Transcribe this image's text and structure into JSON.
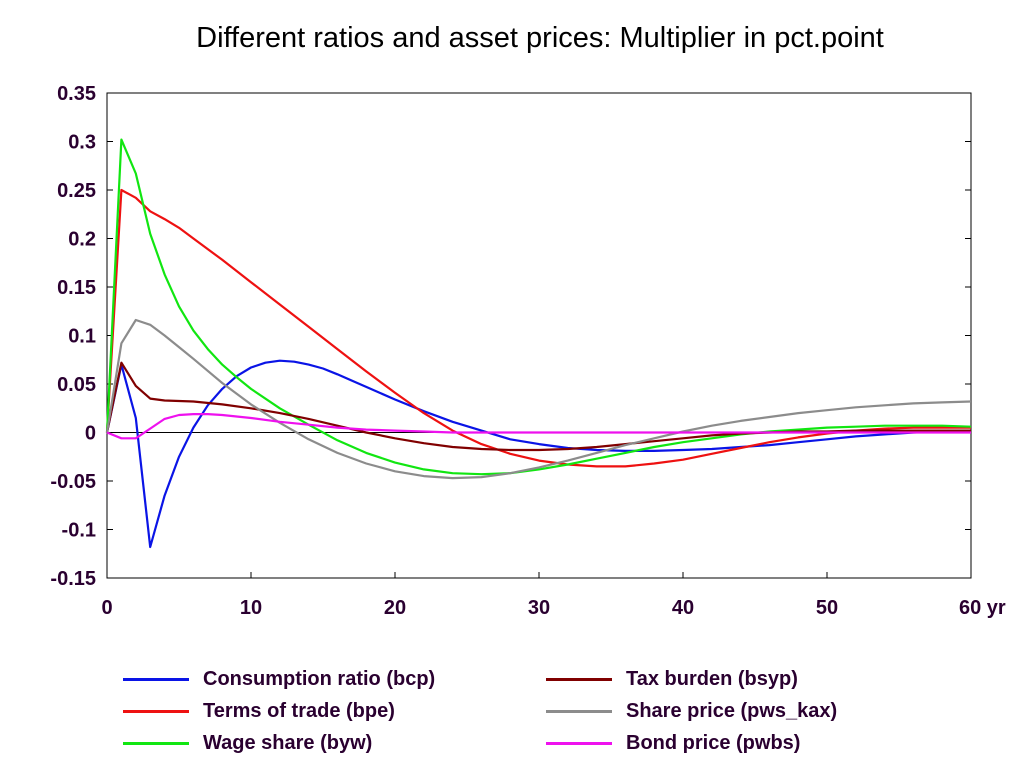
{
  "chart_data": {
    "type": "line",
    "title": "Different ratios and asset prices: Multiplier in pct.point",
    "xlabel": "",
    "ylabel": "",
    "x_unit_label": "yr",
    "xlim": [
      0,
      60
    ],
    "ylim": [
      -0.15,
      0.35
    ],
    "x_ticks": [
      "0",
      "10",
      "20",
      "30",
      "40",
      "50",
      "60 yr"
    ],
    "y_ticks": [
      "0.35",
      "0.3",
      "0.25",
      "0.2",
      "0.15",
      "0.1",
      "0.05",
      "0",
      "-0.05",
      "-0.1",
      "-0.15"
    ],
    "grid": false,
    "zero_line": true,
    "legend_position": "bottom",
    "series": [
      {
        "name": "Consumption ratio (bcp)",
        "color": "#0a14e6",
        "points": [
          [
            0,
            0
          ],
          [
            1,
            0.07
          ],
          [
            2,
            0.015
          ],
          [
            3,
            -0.118
          ],
          [
            4,
            -0.065
          ],
          [
            5,
            -0.025
          ],
          [
            6,
            0.005
          ],
          [
            7,
            0.028
          ],
          [
            8,
            0.045
          ],
          [
            9,
            0.058
          ],
          [
            10,
            0.067
          ],
          [
            11,
            0.072
          ],
          [
            12,
            0.074
          ],
          [
            13,
            0.073
          ],
          [
            14,
            0.07
          ],
          [
            15,
            0.066
          ],
          [
            16,
            0.06
          ],
          [
            18,
            0.047
          ],
          [
            20,
            0.034
          ],
          [
            22,
            0.022
          ],
          [
            24,
            0.011
          ],
          [
            26,
            0.002
          ],
          [
            28,
            -0.007
          ],
          [
            30,
            -0.012
          ],
          [
            32,
            -0.016
          ],
          [
            34,
            -0.018
          ],
          [
            36,
            -0.019
          ],
          [
            38,
            -0.019
          ],
          [
            40,
            -0.018
          ],
          [
            42,
            -0.017
          ],
          [
            44,
            -0.015
          ],
          [
            46,
            -0.013
          ],
          [
            48,
            -0.01
          ],
          [
            50,
            -0.007
          ],
          [
            52,
            -0.004
          ],
          [
            54,
            -0.002
          ],
          [
            56,
            0.0
          ],
          [
            58,
            0.001
          ],
          [
            60,
            0.002
          ]
        ]
      },
      {
        "name": "Terms of trade (bpe)",
        "color": "#ee1111",
        "points": [
          [
            0,
            0
          ],
          [
            1,
            0.25
          ],
          [
            2,
            0.242
          ],
          [
            3,
            0.228
          ],
          [
            4,
            0.22
          ],
          [
            5,
            0.211
          ],
          [
            6,
            0.2
          ],
          [
            8,
            0.178
          ],
          [
            10,
            0.155
          ],
          [
            12,
            0.132
          ],
          [
            14,
            0.109
          ],
          [
            16,
            0.086
          ],
          [
            18,
            0.063
          ],
          [
            20,
            0.041
          ],
          [
            22,
            0.02
          ],
          [
            24,
            0.002
          ],
          [
            26,
            -0.012
          ],
          [
            28,
            -0.022
          ],
          [
            30,
            -0.029
          ],
          [
            32,
            -0.033
          ],
          [
            34,
            -0.035
          ],
          [
            36,
            -0.035
          ],
          [
            38,
            -0.032
          ],
          [
            40,
            -0.028
          ],
          [
            42,
            -0.022
          ],
          [
            44,
            -0.016
          ],
          [
            46,
            -0.01
          ],
          [
            48,
            -0.005
          ],
          [
            50,
            -0.001
          ],
          [
            52,
            0.002
          ],
          [
            54,
            0.004
          ],
          [
            56,
            0.005
          ],
          [
            58,
            0.005
          ],
          [
            60,
            0.005
          ]
        ]
      },
      {
        "name": "Wage share (byw)",
        "color": "#11e611",
        "points": [
          [
            0,
            0
          ],
          [
            1,
            0.302
          ],
          [
            2,
            0.267
          ],
          [
            3,
            0.205
          ],
          [
            4,
            0.163
          ],
          [
            5,
            0.13
          ],
          [
            6,
            0.105
          ],
          [
            7,
            0.086
          ],
          [
            8,
            0.07
          ],
          [
            9,
            0.057
          ],
          [
            10,
            0.045
          ],
          [
            12,
            0.025
          ],
          [
            14,
            0.008
          ],
          [
            16,
            -0.008
          ],
          [
            18,
            -0.021
          ],
          [
            20,
            -0.031
          ],
          [
            22,
            -0.038
          ],
          [
            24,
            -0.042
          ],
          [
            26,
            -0.043
          ],
          [
            28,
            -0.042
          ],
          [
            30,
            -0.038
          ],
          [
            32,
            -0.033
          ],
          [
            34,
            -0.027
          ],
          [
            36,
            -0.021
          ],
          [
            38,
            -0.015
          ],
          [
            40,
            -0.01
          ],
          [
            42,
            -0.006
          ],
          [
            44,
            -0.002
          ],
          [
            46,
            0.001
          ],
          [
            48,
            0.003
          ],
          [
            50,
            0.005
          ],
          [
            52,
            0.006
          ],
          [
            54,
            0.007
          ],
          [
            56,
            0.007
          ],
          [
            58,
            0.007
          ],
          [
            60,
            0.006
          ]
        ]
      },
      {
        "name": "Tax burden (bsyp)",
        "color": "#800000",
        "points": [
          [
            0,
            0
          ],
          [
            1,
            0.072
          ],
          [
            2,
            0.048
          ],
          [
            3,
            0.035
          ],
          [
            4,
            0.033
          ],
          [
            6,
            0.032
          ],
          [
            8,
            0.029
          ],
          [
            10,
            0.025
          ],
          [
            12,
            0.02
          ],
          [
            14,
            0.014
          ],
          [
            16,
            0.007
          ],
          [
            18,
            0.0
          ],
          [
            20,
            -0.006
          ],
          [
            22,
            -0.011
          ],
          [
            24,
            -0.015
          ],
          [
            26,
            -0.017
          ],
          [
            28,
            -0.018
          ],
          [
            30,
            -0.018
          ],
          [
            32,
            -0.017
          ],
          [
            34,
            -0.015
          ],
          [
            36,
            -0.012
          ],
          [
            38,
            -0.009
          ],
          [
            40,
            -0.006
          ],
          [
            42,
            -0.003
          ],
          [
            44,
            -0.001
          ],
          [
            46,
            0.0
          ],
          [
            48,
            0.001
          ],
          [
            50,
            0.001
          ],
          [
            52,
            0.002
          ],
          [
            54,
            0.002
          ],
          [
            56,
            0.002
          ],
          [
            58,
            0.002
          ],
          [
            60,
            0.002
          ]
        ]
      },
      {
        "name": "Share price (pws_kax)",
        "color": "#8c8c8c",
        "points": [
          [
            0,
            0
          ],
          [
            1,
            0.092
          ],
          [
            2,
            0.116
          ],
          [
            3,
            0.111
          ],
          [
            4,
            0.1
          ],
          [
            5,
            0.088
          ],
          [
            6,
            0.076
          ],
          [
            8,
            0.051
          ],
          [
            10,
            0.029
          ],
          [
            12,
            0.01
          ],
          [
            14,
            -0.007
          ],
          [
            16,
            -0.021
          ],
          [
            18,
            -0.032
          ],
          [
            20,
            -0.04
          ],
          [
            22,
            -0.045
          ],
          [
            24,
            -0.047
          ],
          [
            26,
            -0.046
          ],
          [
            28,
            -0.042
          ],
          [
            30,
            -0.036
          ],
          [
            32,
            -0.029
          ],
          [
            34,
            -0.021
          ],
          [
            36,
            -0.013
          ],
          [
            38,
            -0.006
          ],
          [
            40,
            0.001
          ],
          [
            42,
            0.007
          ],
          [
            44,
            0.012
          ],
          [
            46,
            0.016
          ],
          [
            48,
            0.02
          ],
          [
            50,
            0.023
          ],
          [
            52,
            0.026
          ],
          [
            54,
            0.028
          ],
          [
            56,
            0.03
          ],
          [
            58,
            0.031
          ],
          [
            60,
            0.032
          ]
        ]
      },
      {
        "name": "Bond price (pwbs)",
        "color": "#ee11ee",
        "points": [
          [
            0,
            0
          ],
          [
            1,
            -0.006
          ],
          [
            2,
            -0.006
          ],
          [
            3,
            0.004
          ],
          [
            4,
            0.014
          ],
          [
            5,
            0.018
          ],
          [
            6,
            0.019
          ],
          [
            7,
            0.019
          ],
          [
            8,
            0.018
          ],
          [
            10,
            0.015
          ],
          [
            12,
            0.011
          ],
          [
            14,
            0.008
          ],
          [
            16,
            0.005
          ],
          [
            18,
            0.003
          ],
          [
            20,
            0.002
          ],
          [
            22,
            0.001
          ],
          [
            24,
            0.0
          ],
          [
            26,
            0.0
          ],
          [
            30,
            0.0
          ],
          [
            40,
            0.0
          ],
          [
            50,
            0.0
          ],
          [
            60,
            0.0
          ]
        ]
      }
    ]
  }
}
